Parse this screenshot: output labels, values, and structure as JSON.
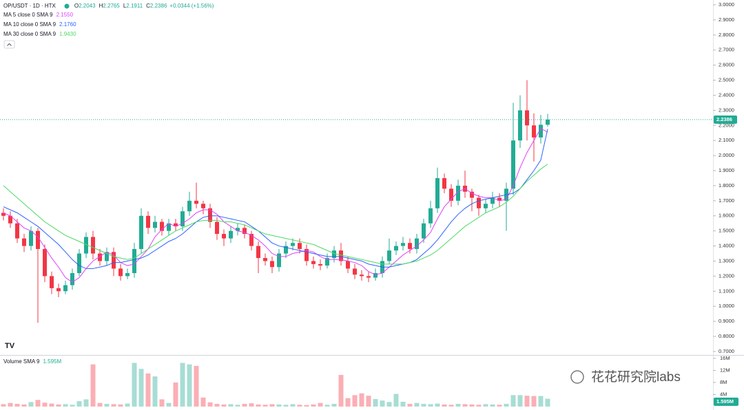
{
  "chart_data": {
    "type": "candlestick",
    "symbol": "OP/USDT · 1D · HTX",
    "ohlc_legend": [
      {
        "label": "O",
        "value": 2.2043
      },
      {
        "label": "H",
        "value": 2.2765
      },
      {
        "label": "L",
        "value": 2.1911
      },
      {
        "label": "C",
        "value": 2.2386
      }
    ],
    "change_label": "+0.0344 (+1.56%)",
    "up_color": "#22ab94",
    "down_color": "#f23645",
    "open": [
      1.62,
      1.6,
      1.55,
      1.45,
      1.4,
      1.5,
      1.38,
      1.2,
      1.12,
      1.1,
      1.14,
      1.22,
      1.35,
      1.46,
      1.35,
      1.3,
      1.36,
      1.25,
      1.2,
      1.22,
      1.38,
      1.6,
      1.52,
      1.56,
      1.5,
      1.55,
      1.53,
      1.63,
      1.7,
      1.68,
      1.65,
      1.56,
      1.48,
      1.45,
      1.5,
      1.52,
      1.48,
      1.4,
      1.32,
      1.3,
      1.26,
      1.35,
      1.4,
      1.42,
      1.38,
      1.3,
      1.28,
      1.27,
      1.32,
      1.37,
      1.3,
      1.25,
      1.21,
      1.2,
      1.19,
      1.22,
      1.3,
      1.37,
      1.4,
      1.42,
      1.38,
      1.45,
      1.55,
      1.65,
      1.85,
      1.78,
      1.7,
      1.8,
      1.76,
      1.72,
      1.65,
      1.68,
      1.72,
      1.7,
      1.78,
      2.1,
      2.3,
      2.2,
      2.12,
      2.2043
    ],
    "high": [
      1.65,
      1.63,
      1.58,
      1.48,
      1.53,
      1.52,
      1.41,
      1.23,
      1.15,
      1.17,
      1.25,
      1.38,
      1.49,
      1.5,
      1.38,
      1.39,
      1.39,
      1.28,
      1.25,
      1.42,
      1.65,
      1.63,
      1.6,
      1.58,
      1.58,
      1.58,
      1.66,
      1.76,
      1.82,
      1.7,
      1.68,
      1.59,
      1.51,
      1.53,
      1.55,
      1.54,
      1.5,
      1.43,
      1.35,
      1.33,
      1.38,
      1.43,
      1.45,
      1.45,
      1.41,
      1.33,
      1.31,
      1.35,
      1.4,
      1.42,
      1.33,
      1.28,
      1.24,
      1.23,
      1.25,
      1.33,
      1.45,
      1.43,
      1.46,
      1.45,
      1.48,
      1.58,
      1.7,
      1.92,
      1.88,
      1.81,
      1.84,
      1.9,
      1.78,
      1.74,
      1.71,
      1.76,
      1.75,
      1.82,
      2.35,
      2.4,
      2.5,
      2.28,
      2.27,
      2.2765
    ],
    "low": [
      1.57,
      1.52,
      1.42,
      1.36,
      1.37,
      0.89,
      1.16,
      1.08,
      1.06,
      1.08,
      1.11,
      1.2,
      1.32,
      1.31,
      1.27,
      1.27,
      1.2,
      1.17,
      1.18,
      1.19,
      1.35,
      1.48,
      1.49,
      1.47,
      1.47,
      1.5,
      1.5,
      1.6,
      1.65,
      1.61,
      1.52,
      1.44,
      1.4,
      1.42,
      1.47,
      1.45,
      1.37,
      1.22,
      1.27,
      1.22,
      1.23,
      1.32,
      1.37,
      1.35,
      1.27,
      1.25,
      1.24,
      1.25,
      1.29,
      1.27,
      1.22,
      1.18,
      1.17,
      1.16,
      1.17,
      1.19,
      1.28,
      1.34,
      1.37,
      1.35,
      1.35,
      1.42,
      1.52,
      1.62,
      1.75,
      1.66,
      1.67,
      1.72,
      1.63,
      1.6,
      1.62,
      1.65,
      1.66,
      1.5,
      1.74,
      2.05,
      2.1,
      1.96,
      2.08,
      2.1911
    ],
    "close": [
      1.6,
      1.55,
      1.45,
      1.4,
      1.5,
      1.38,
      1.2,
      1.12,
      1.1,
      1.14,
      1.22,
      1.35,
      1.46,
      1.35,
      1.3,
      1.36,
      1.25,
      1.2,
      1.22,
      1.38,
      1.6,
      1.52,
      1.56,
      1.5,
      1.55,
      1.53,
      1.63,
      1.7,
      1.68,
      1.65,
      1.56,
      1.48,
      1.45,
      1.5,
      1.52,
      1.48,
      1.4,
      1.32,
      1.3,
      1.26,
      1.35,
      1.4,
      1.42,
      1.38,
      1.3,
      1.28,
      1.27,
      1.32,
      1.37,
      1.3,
      1.25,
      1.21,
      1.2,
      1.19,
      1.22,
      1.3,
      1.37,
      1.4,
      1.42,
      1.38,
      1.45,
      1.55,
      1.65,
      1.85,
      1.78,
      1.7,
      1.8,
      1.76,
      1.72,
      1.65,
      1.68,
      1.72,
      1.7,
      1.78,
      2.1,
      2.3,
      2.2,
      2.12,
      2.2043,
      2.2386
    ],
    "last_price_label": "2.2386",
    "series": [
      {
        "name": "MA 5 close 0 SMA 9",
        "color": "#e040fb",
        "value_label": "2.1550",
        "values": [
          1.62,
          1.6,
          1.56,
          1.52,
          1.5,
          1.46,
          1.39,
          1.32,
          1.26,
          1.19,
          1.16,
          1.19,
          1.25,
          1.3,
          1.33,
          1.36,
          1.34,
          1.29,
          1.27,
          1.28,
          1.33,
          1.38,
          1.46,
          1.51,
          1.55,
          1.53,
          1.55,
          1.58,
          1.62,
          1.64,
          1.64,
          1.61,
          1.56,
          1.53,
          1.5,
          1.49,
          1.47,
          1.44,
          1.4,
          1.35,
          1.33,
          1.33,
          1.35,
          1.36,
          1.37,
          1.36,
          1.33,
          1.31,
          1.31,
          1.31,
          1.3,
          1.29,
          1.27,
          1.23,
          1.21,
          1.22,
          1.26,
          1.3,
          1.34,
          1.37,
          1.4,
          1.44,
          1.49,
          1.58,
          1.66,
          1.71,
          1.76,
          1.78,
          1.75,
          1.73,
          1.72,
          1.72,
          1.7,
          1.71,
          1.8,
          1.92,
          2.02,
          2.1,
          2.18,
          2.155
        ]
      },
      {
        "name": "MA 10 close 0 SMA 9",
        "color": "#2962ff",
        "value_label": "2.1760",
        "values": [
          1.66,
          1.64,
          1.62,
          1.59,
          1.56,
          1.53,
          1.49,
          1.45,
          1.41,
          1.36,
          1.31,
          1.27,
          1.25,
          1.25,
          1.26,
          1.27,
          1.29,
          1.29,
          1.3,
          1.31,
          1.32,
          1.34,
          1.37,
          1.4,
          1.43,
          1.45,
          1.48,
          1.52,
          1.56,
          1.59,
          1.6,
          1.6,
          1.59,
          1.58,
          1.57,
          1.56,
          1.53,
          1.5,
          1.46,
          1.42,
          1.4,
          1.39,
          1.38,
          1.37,
          1.36,
          1.35,
          1.34,
          1.33,
          1.33,
          1.33,
          1.32,
          1.31,
          1.3,
          1.28,
          1.27,
          1.26,
          1.26,
          1.27,
          1.28,
          1.29,
          1.31,
          1.35,
          1.39,
          1.44,
          1.5,
          1.56,
          1.61,
          1.65,
          1.68,
          1.7,
          1.71,
          1.72,
          1.73,
          1.74,
          1.75,
          1.78,
          1.84,
          1.9,
          1.97,
          2.176
        ]
      },
      {
        "name": "MA 30 close 0 SMA 9",
        "color": "#4cd964",
        "value_label": "1.9430",
        "values": [
          1.8,
          1.76,
          1.72,
          1.68,
          1.64,
          1.6,
          1.56,
          1.53,
          1.5,
          1.47,
          1.45,
          1.43,
          1.41,
          1.39,
          1.37,
          1.35,
          1.33,
          1.32,
          1.31,
          1.32,
          1.35,
          1.38,
          1.41,
          1.44,
          1.47,
          1.5,
          1.52,
          1.54,
          1.56,
          1.57,
          1.57,
          1.57,
          1.56,
          1.56,
          1.55,
          1.54,
          1.52,
          1.5,
          1.48,
          1.47,
          1.46,
          1.45,
          1.44,
          1.43,
          1.42,
          1.41,
          1.39,
          1.37,
          1.35,
          1.34,
          1.33,
          1.32,
          1.31,
          1.3,
          1.29,
          1.28,
          1.28,
          1.28,
          1.28,
          1.29,
          1.3,
          1.32,
          1.34,
          1.37,
          1.41,
          1.45,
          1.49,
          1.53,
          1.56,
          1.59,
          1.62,
          1.64,
          1.66,
          1.69,
          1.73,
          1.78,
          1.83,
          1.87,
          1.91,
          1.943
        ]
      }
    ],
    "ylim": [
      0.686,
      3.032
    ],
    "yticks": [
      {
        "value": 0.7,
        "label": "0.7000"
      },
      {
        "value": 0.8,
        "label": "0.8000"
      },
      {
        "value": 0.9,
        "label": "0.9000"
      },
      {
        "value": 1.0,
        "label": "1.0000"
      },
      {
        "value": 1.1,
        "label": "1.1000"
      },
      {
        "value": 1.2,
        "label": "1.2000"
      },
      {
        "value": 1.3,
        "label": "1.3000"
      },
      {
        "value": 1.4,
        "label": "1.4000"
      },
      {
        "value": 1.5,
        "label": "1.5000"
      },
      {
        "value": 1.6,
        "label": "1.6000"
      },
      {
        "value": 1.7,
        "label": "1.7000"
      },
      {
        "value": 1.8,
        "label": "1.8000"
      },
      {
        "value": 1.9,
        "label": "1.9000"
      },
      {
        "value": 2.0,
        "label": "2.0000"
      },
      {
        "value": 2.1,
        "label": "2.1000"
      },
      {
        "value": 2.2,
        "label": "2.2000"
      },
      {
        "value": 2.3,
        "label": "2.3000"
      },
      {
        "value": 2.4,
        "label": "2.4000"
      },
      {
        "value": 2.5,
        "label": "2.5000"
      },
      {
        "value": 2.6,
        "label": "2.6000"
      },
      {
        "value": 2.7,
        "label": "2.7000"
      },
      {
        "value": 2.8,
        "label": "2.8000"
      },
      {
        "value": 2.9,
        "label": "2.9000"
      },
      {
        "value": 3.0,
        "label": "3.0000"
      }
    ],
    "volume_title": "Volume SMA 9",
    "volume_sma": 1595000,
    "volume_sma_label": "1.595M",
    "volume": [
      800000,
      1200000,
      900000,
      700000,
      1500000,
      2200000,
      1300000,
      1000000,
      700000,
      800000,
      600000,
      1800000,
      2400000,
      14000000,
      1200000,
      900000,
      800000,
      700000,
      1000000,
      14500000,
      12500000,
      11000000,
      10000000,
      2400000,
      1200000,
      8000000,
      14500000,
      14000000,
      13500000,
      3000000,
      1400000,
      900000,
      700000,
      800000,
      600000,
      900000,
      1100000,
      700000,
      600000,
      800000,
      700000,
      600000,
      800000,
      600000,
      500000,
      700000,
      1200000,
      600000,
      900000,
      10500000,
      2800000,
      3800000,
      4400000,
      3600000,
      2500000,
      2000000,
      1500000,
      4200000,
      1600000,
      900000,
      1200000,
      900000,
      800000,
      1000000,
      700000,
      600000,
      900000,
      800000,
      700000,
      600000,
      800000,
      700000,
      600000,
      900000,
      3800000,
      3800000,
      3600000,
      3500000,
      3500000,
      2600000
    ],
    "volume_ylim": [
      0,
      16900000
    ],
    "volume_ticks": [
      {
        "value": 4000000,
        "label": "4M"
      },
      {
        "value": 8000000,
        "label": "8M"
      },
      {
        "value": 12000000,
        "label": "12M"
      },
      {
        "value": 16000000,
        "label": "16M"
      }
    ],
    "watermark": "花花研究院labs"
  }
}
